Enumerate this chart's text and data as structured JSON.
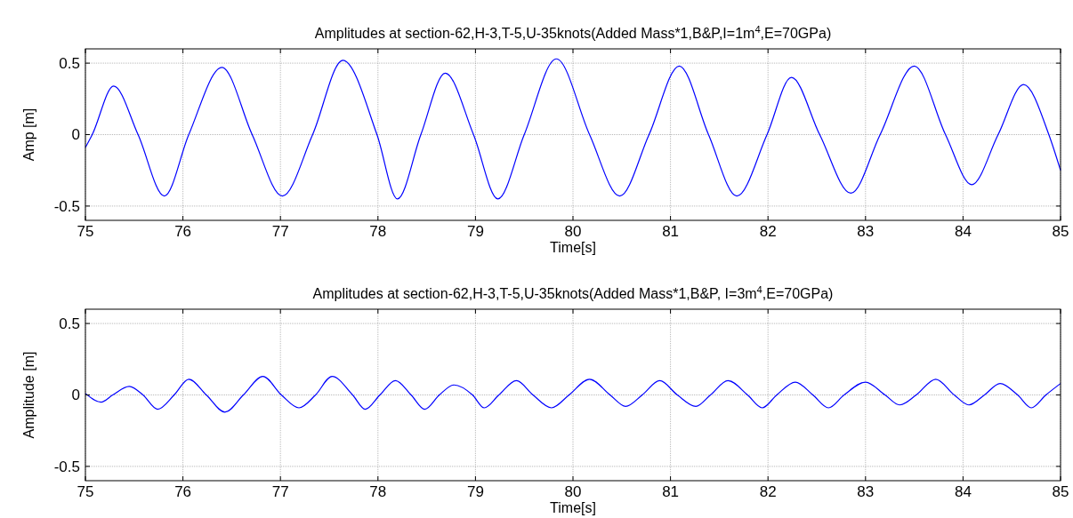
{
  "chart_data": [
    {
      "type": "line",
      "title": "Amplitudes at section-62,H-3,T-5,U-35knots(Added Mass*1,B&P,I=1m$^{4}$,E=70GPa)",
      "xlabel": "Time[s]",
      "ylabel": "Amp [m]",
      "xlim": [
        75,
        85
      ],
      "ylim": [
        -0.6,
        0.6
      ],
      "xticks": [
        75,
        76,
        77,
        78,
        79,
        80,
        81,
        82,
        83,
        84,
        85
      ],
      "yticks": [
        -0.5,
        0,
        0.5
      ],
      "grid": true,
      "line_style": "solid",
      "series": [
        {
          "color": "#0000ff",
          "x": [
            75,
            75.07,
            75.29,
            75.54,
            75.81,
            76.06,
            76.4,
            76.71,
            77.02,
            77.33,
            77.64,
            77.99,
            78.2,
            78.44,
            78.69,
            78.98,
            79.23,
            79.5,
            79.83,
            80.17,
            80.48,
            80.78,
            81.09,
            81.39,
            81.68,
            81.99,
            82.24,
            82.53,
            82.85,
            83.15,
            83.5,
            83.82,
            84.09,
            84.36,
            84.62,
            84.88,
            85
          ],
          "values": [
            -0.09,
            0,
            0.34,
            0,
            -0.43,
            0,
            0.47,
            0,
            -0.43,
            0,
            0.52,
            0,
            -0.45,
            0,
            0.43,
            0,
            -0.45,
            0,
            0.53,
            0,
            -0.43,
            0,
            0.48,
            0,
            -0.43,
            0,
            0.4,
            0,
            -0.41,
            0,
            0.48,
            0,
            -0.35,
            0,
            0.35,
            0,
            -0.25
          ]
        }
      ]
    },
    {
      "type": "line",
      "title": "Amplitudes at section-62,H-3,T-5,U-35knots(Added Mass*1,B&P, I=3m$^{4}$,E=70GPa)",
      "xlabel": "Time[s]",
      "ylabel": "Amplitude [m]",
      "xlim": [
        75,
        85
      ],
      "ylim": [
        -0.6,
        0.6
      ],
      "xticks": [
        75,
        76,
        77,
        78,
        79,
        80,
        81,
        82,
        83,
        84,
        85
      ],
      "yticks": [
        -0.5,
        0,
        0.5
      ],
      "grid": true,
      "line_style": "solid",
      "series": [
        {
          "color": "#0000ff",
          "x": [
            75,
            75.16,
            75.28,
            75.45,
            75.59,
            75.74,
            75.91,
            76.06,
            76.24,
            76.43,
            76.62,
            76.82,
            77.01,
            77.19,
            77.36,
            77.53,
            77.74,
            77.87,
            78.02,
            78.18,
            78.34,
            78.48,
            78.63,
            78.78,
            78.97,
            79.09,
            79.24,
            79.42,
            79.59,
            79.78,
            79.96,
            80.17,
            80.38,
            80.54,
            80.71,
            80.89,
            81.07,
            81.26,
            81.41,
            81.59,
            81.79,
            81.94,
            82.09,
            82.28,
            82.46,
            82.62,
            82.78,
            83.0,
            83.2,
            83.35,
            83.52,
            83.72,
            83.91,
            84.06,
            84.22,
            84.38,
            84.56,
            84.7,
            84.85,
            85
          ],
          "values": [
            0.01,
            -0.05,
            0,
            0.06,
            0,
            -0.1,
            0,
            0.11,
            0,
            -0.12,
            0,
            0.13,
            0,
            -0.09,
            0,
            0.13,
            0,
            -0.1,
            0,
            0.1,
            0,
            -0.1,
            0,
            0.07,
            0,
            -0.09,
            0,
            0.1,
            0,
            -0.09,
            0,
            0.11,
            0,
            -0.08,
            0,
            0.1,
            0,
            -0.08,
            0,
            0.1,
            0,
            -0.09,
            0,
            0.09,
            0,
            -0.09,
            0,
            0.09,
            0,
            -0.07,
            0,
            0.11,
            0,
            -0.07,
            0,
            0.08,
            0,
            -0.09,
            0,
            0.08
          ]
        }
      ]
    }
  ]
}
